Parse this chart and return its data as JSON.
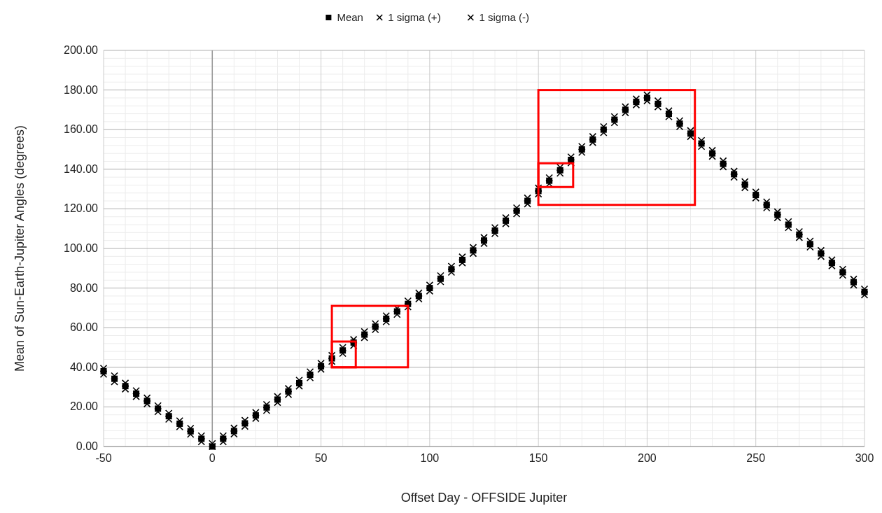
{
  "chart_data": {
    "type": "scatter",
    "xlabel": "Offset Day - OFFSIDE Jupiter",
    "ylabel": "Mean of Sun-Earth-Jupiter Angles (degrees)",
    "x": [
      -50,
      -45,
      -40,
      -35,
      -30,
      -25,
      -20,
      -15,
      -10,
      -5,
      0,
      5,
      10,
      15,
      20,
      25,
      30,
      35,
      40,
      45,
      50,
      55,
      60,
      65,
      70,
      75,
      80,
      85,
      90,
      95,
      100,
      105,
      110,
      115,
      120,
      125,
      130,
      135,
      140,
      145,
      150,
      155,
      160,
      165,
      170,
      175,
      180,
      185,
      190,
      195,
      200,
      205,
      210,
      215,
      220,
      225,
      230,
      235,
      240,
      245,
      250,
      255,
      260,
      265,
      270,
      275,
      280,
      285,
      290,
      295,
      300
    ],
    "series": [
      {
        "name": "Mean",
        "color": "#000000",
        "marker": "square",
        "values": [
          38,
          34.2,
          30.5,
          26.7,
          23,
          19.1,
          15.3,
          11.5,
          7.7,
          3.9,
          0,
          3.9,
          7.8,
          11.7,
          15.7,
          19.7,
          23.7,
          27.8,
          32,
          36.2,
          40.5,
          44.5,
          48.5,
          52.5,
          56.5,
          60.5,
          64.5,
          68.2,
          72,
          76,
          80,
          84.7,
          89.5,
          94.2,
          99,
          104,
          109,
          114,
          119,
          124,
          129,
          134.2,
          139.5,
          144.7,
          150,
          155,
          160,
          165,
          170,
          174,
          176,
          173,
          168,
          163,
          158,
          153,
          148,
          142.7,
          137.5,
          132.2,
          127,
          122,
          117,
          112,
          107,
          102.2,
          97.5,
          92.7,
          88,
          83,
          78
        ]
      },
      {
        "name": "1 sigma (+)",
        "color": "#000000",
        "marker": "cross",
        "values": [
          39.5,
          35.7,
          32,
          28.2,
          24.5,
          20.6,
          16.8,
          13,
          9.2,
          5.4,
          1.5,
          5.4,
          9.3,
          13.2,
          17.2,
          21.2,
          25.2,
          29.3,
          33.5,
          37.7,
          42,
          46,
          50,
          54,
          58,
          62,
          66,
          69.7,
          73.5,
          77.5,
          81.5,
          86.2,
          91,
          95.7,
          100.5,
          105.5,
          110.5,
          115.5,
          120.5,
          125.5,
          130.5,
          135.7,
          141,
          146.2,
          151.5,
          156.5,
          161.5,
          166.5,
          171.5,
          175.5,
          177.5,
          174.5,
          169.5,
          164.5,
          159.5,
          154.5,
          149.5,
          144.2,
          139,
          133.7,
          128.5,
          123.5,
          118.5,
          113.5,
          108.5,
          103.7,
          99,
          94.2,
          89.5,
          84.5,
          79.5
        ]
      },
      {
        "name": "1 sigma (-)",
        "color": "#000000",
        "marker": "cross",
        "values": [
          36.5,
          32.7,
          29,
          25.2,
          21.5,
          17.6,
          13.8,
          10,
          6.2,
          2.4,
          0,
          2.4,
          6.3,
          10.2,
          14.2,
          18.2,
          22.2,
          26.3,
          30.5,
          34.7,
          39,
          43,
          47,
          51,
          55,
          59,
          63,
          66.7,
          70.5,
          74.5,
          78.5,
          83.2,
          88,
          92.7,
          97.5,
          102.5,
          107.5,
          112.5,
          117.5,
          122.5,
          127.5,
          132.7,
          138,
          143.2,
          148.5,
          153.5,
          158.5,
          163.5,
          168.5,
          172.5,
          174.5,
          171.5,
          166.5,
          161.5,
          156.5,
          151.5,
          146.5,
          141.2,
          136,
          130.7,
          125.5,
          120.5,
          115.5,
          110.5,
          105.5,
          100.7,
          96,
          91.2,
          86.5,
          81.5,
          76.5
        ]
      }
    ],
    "xlim": [
      -50,
      300
    ],
    "xticks": [
      -50,
      0,
      50,
      100,
      150,
      200,
      250,
      300
    ],
    "ylim": [
      0,
      200
    ],
    "yticks": [
      {
        "value": 0,
        "label": "0.00"
      },
      {
        "value": 20,
        "label": "20.00"
      },
      {
        "value": 40,
        "label": "40.00"
      },
      {
        "value": 60,
        "label": "60.00"
      },
      {
        "value": 80,
        "label": "80.00"
      },
      {
        "value": 100,
        "label": "100.00"
      },
      {
        "value": 120,
        "label": "120.00"
      },
      {
        "value": 140,
        "label": "140.00"
      },
      {
        "value": 160,
        "label": "160.00"
      },
      {
        "value": 180,
        "label": "180.00"
      },
      {
        "value": 200,
        "label": "200.00"
      }
    ],
    "ref_lines": [
      {
        "axis": "x",
        "value": 0,
        "color": "#999999"
      }
    ],
    "grid": true,
    "legend": "top"
  }
}
